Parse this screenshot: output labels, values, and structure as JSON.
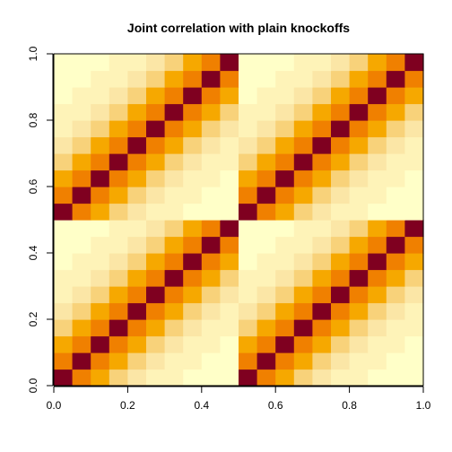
{
  "chart_data": {
    "type": "heatmap",
    "title": "Joint correlation with plain knockoffs",
    "xlabel": "",
    "ylabel": "",
    "xlim": [
      0,
      1
    ],
    "ylim": [
      0,
      1
    ],
    "x_ticks": [
      "0.0",
      "0.2",
      "0.4",
      "0.6",
      "0.8",
      "1.0"
    ],
    "y_ticks": [
      "0.0",
      "0.2",
      "0.4",
      "0.6",
      "0.8",
      "1.0"
    ],
    "x_tick_values": [
      0,
      0.2,
      0.4,
      0.6,
      0.8,
      1.0
    ],
    "y_tick_values": [
      0,
      0.2,
      0.4,
      0.6,
      0.8,
      1.0
    ],
    "grid": false,
    "legend": "none",
    "matrix_size": 20,
    "block_size": 10,
    "row_order": "bottom-to-top",
    "correlation_by_lag": [
      1.0,
      0.7,
      0.45,
      0.3,
      0.2,
      0.14,
      0.1,
      0.07,
      0.05,
      0.04
    ],
    "color_scale": [
      {
        "min": 0.85,
        "color": "#7f0020"
      },
      {
        "min": 0.6,
        "color": "#f08000"
      },
      {
        "min": 0.4,
        "color": "#f6a800"
      },
      {
        "min": 0.25,
        "color": "#f8d27a"
      },
      {
        "min": 0.15,
        "color": "#fbe6a6"
      },
      {
        "min": 0.09,
        "color": "#fef3b8"
      },
      {
        "min": 0.0,
        "color": "#ffffc8"
      }
    ]
  }
}
